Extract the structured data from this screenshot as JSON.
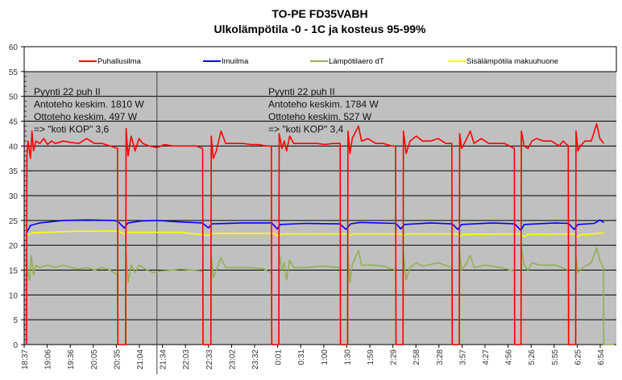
{
  "chart_data": {
    "type": "line",
    "title": "TO-PE FD35VABH",
    "subtitle": "Ulkolämpötila -0 - 1C ja kosteus 95-99%",
    "xlabel": "",
    "ylabel": "",
    "ylim": [
      0,
      60
    ],
    "yticks": [
      0,
      5,
      10,
      15,
      20,
      25,
      30,
      35,
      40,
      45,
      50,
      55,
      60
    ],
    "x_unit": "minutes after 18:37",
    "xlim": [
      0,
      755
    ],
    "xtick_labels": [
      "18:37",
      "19:06",
      "19:36",
      "20:05",
      "20:35",
      "21:04",
      "21:34",
      "22:03",
      "22:33",
      "23:02",
      "23:32",
      "0:01",
      "0:31",
      "1:00",
      "1:30",
      "1:59",
      "2:29",
      "2:58",
      "3:28",
      "3:57",
      "4:27",
      "4:56",
      "5:26",
      "5:55",
      "6:25",
      "6:54"
    ],
    "grid": true,
    "legend_position": "top",
    "colors": {
      "background": "#c0c0c0",
      "legend_bg": "#ffffff",
      "grid": "#000000"
    },
    "annotations": [
      {
        "lines": [
          "Pyynti 22 puh II",
          "Antoteho keskim. 1810 W",
          "Ottoteho keskim. 497 W",
          "=> \"koti KOP\" 3,6"
        ]
      },
      {
        "lines": [
          "Pyynti 22 puh II",
          "Antoteho keskim. 1784 W",
          "Ottoteho keskim. 527 W",
          "=> \"koti KOP\" 3,4"
        ]
      }
    ],
    "divider_minute": 170,
    "series": [
      {
        "name": "Puhallusilma",
        "color": "#ff0000",
        "points": [
          [
            3,
            0
          ],
          [
            3.5,
            38
          ],
          [
            5,
            41
          ],
          [
            8,
            37.5
          ],
          [
            10,
            43
          ],
          [
            12,
            39
          ],
          [
            15,
            41
          ],
          [
            20,
            40.5
          ],
          [
            25,
            41.5
          ],
          [
            30,
            40.3
          ],
          [
            35,
            41
          ],
          [
            40,
            40.5
          ],
          [
            50,
            41
          ],
          [
            60,
            40.7
          ],
          [
            70,
            40.5
          ],
          [
            80,
            41.5
          ],
          [
            90,
            40.5
          ],
          [
            100,
            40.5
          ],
          [
            110,
            40
          ],
          [
            119.5,
            39.5
          ],
          [
            120,
            0
          ],
          [
            130,
            0
          ],
          [
            130.5,
            43.5
          ],
          [
            133,
            38
          ],
          [
            137,
            42
          ],
          [
            142,
            39
          ],
          [
            147,
            41.5
          ],
          [
            152,
            40.5
          ],
          [
            160,
            40
          ],
          [
            170,
            39.7
          ],
          [
            180,
            40.3
          ],
          [
            190,
            40
          ],
          [
            200,
            40
          ],
          [
            210,
            40
          ],
          [
            220,
            40
          ],
          [
            228.5,
            39.5
          ],
          [
            229,
            0
          ],
          [
            239,
            0
          ],
          [
            239.5,
            42
          ],
          [
            242,
            37.5
          ],
          [
            246,
            39
          ],
          [
            252,
            43
          ],
          [
            258,
            40.5
          ],
          [
            270,
            40.5
          ],
          [
            280,
            40.5
          ],
          [
            290,
            40.3
          ],
          [
            300,
            40.3
          ],
          [
            310,
            40
          ],
          [
            316.5,
            40
          ],
          [
            317,
            0
          ],
          [
            326,
            0
          ],
          [
            326.5,
            42.5
          ],
          [
            330,
            39.5
          ],
          [
            333,
            41
          ],
          [
            336,
            39
          ],
          [
            340,
            42
          ],
          [
            345,
            40.5
          ],
          [
            355,
            40.5
          ],
          [
            365,
            40.5
          ],
          [
            375,
            40.5
          ],
          [
            385,
            40.3
          ],
          [
            395,
            40.5
          ],
          [
            404.5,
            40.5
          ],
          [
            405,
            0
          ],
          [
            414,
            0
          ],
          [
            414.5,
            43
          ],
          [
            417,
            38.5
          ],
          [
            420,
            41.5
          ],
          [
            428,
            44
          ],
          [
            432,
            41
          ],
          [
            440,
            41.5
          ],
          [
            450,
            40.5
          ],
          [
            460,
            40.5
          ],
          [
            470,
            40
          ],
          [
            475.5,
            40
          ],
          [
            476,
            0
          ],
          [
            485,
            0
          ],
          [
            485.5,
            43
          ],
          [
            489,
            38.5
          ],
          [
            494,
            41
          ],
          [
            502,
            42
          ],
          [
            510,
            41
          ],
          [
            520,
            41
          ],
          [
            530,
            41.5
          ],
          [
            540,
            40.5
          ],
          [
            547.5,
            40.5
          ],
          [
            548,
            0
          ],
          [
            557,
            0
          ],
          [
            557.5,
            42.5
          ],
          [
            560,
            39.5
          ],
          [
            565,
            41
          ],
          [
            571,
            43
          ],
          [
            576,
            40.5
          ],
          [
            585,
            41.5
          ],
          [
            595,
            40.5
          ],
          [
            605,
            40.5
          ],
          [
            615,
            40.5
          ],
          [
            627.5,
            39.5
          ],
          [
            628,
            0
          ],
          [
            636,
            0
          ],
          [
            636.5,
            43
          ],
          [
            640,
            40
          ],
          [
            645,
            39.5
          ],
          [
            650,
            41
          ],
          [
            656,
            41.5
          ],
          [
            665,
            41
          ],
          [
            675,
            41
          ],
          [
            685,
            40
          ],
          [
            690,
            41
          ],
          [
            696.5,
            40
          ],
          [
            697,
            0
          ],
          [
            706,
            0
          ],
          [
            706.5,
            43
          ],
          [
            709,
            39
          ],
          [
            712,
            40
          ],
          [
            718,
            41
          ],
          [
            726,
            41
          ],
          [
            733,
            44.5
          ],
          [
            737,
            41.5
          ],
          [
            742,
            40.5
          ]
        ]
      },
      {
        "name": "Imuilma",
        "color": "#0000ff",
        "points": [
          [
            3,
            22.5
          ],
          [
            8,
            24
          ],
          [
            20,
            24.5
          ],
          [
            50,
            25
          ],
          [
            80,
            25.1
          ],
          [
            115,
            25
          ],
          [
            120,
            24.8
          ],
          [
            128,
            23.5
          ],
          [
            133,
            24.5
          ],
          [
            150,
            24.9
          ],
          [
            170,
            25
          ],
          [
            200,
            24.7
          ],
          [
            228,
            24.5
          ],
          [
            236,
            23.5
          ],
          [
            240,
            24.3
          ],
          [
            280,
            24.5
          ],
          [
            317,
            24.5
          ],
          [
            324,
            23.3
          ],
          [
            328,
            24.2
          ],
          [
            360,
            24.4
          ],
          [
            404,
            24.3
          ],
          [
            412,
            23.2
          ],
          [
            418,
            24.3
          ],
          [
            430,
            24.6
          ],
          [
            476,
            24.4
          ],
          [
            482,
            23.3
          ],
          [
            487,
            24.2
          ],
          [
            520,
            24.5
          ],
          [
            548,
            24.3
          ],
          [
            555,
            23.2
          ],
          [
            560,
            24.2
          ],
          [
            600,
            24.5
          ],
          [
            628,
            24.3
          ],
          [
            636,
            23
          ],
          [
            640,
            24.2
          ],
          [
            680,
            24.5
          ],
          [
            697,
            24.4
          ],
          [
            704,
            23.2
          ],
          [
            709,
            24.2
          ],
          [
            730,
            24.4
          ],
          [
            737,
            25.1
          ],
          [
            742,
            24.6
          ]
        ]
      },
      {
        "name": "Lämpötilaero dT",
        "color": "#92b050",
        "points": [
          [
            3,
            0
          ],
          [
            3.5,
            17
          ],
          [
            5,
            14
          ],
          [
            7,
            13
          ],
          [
            9,
            18
          ],
          [
            12,
            14
          ],
          [
            15,
            16
          ],
          [
            20,
            15.5
          ],
          [
            30,
            16
          ],
          [
            40,
            15.5
          ],
          [
            50,
            16
          ],
          [
            60,
            15.5
          ],
          [
            70,
            15.2
          ],
          [
            80,
            15.5
          ],
          [
            90,
            15
          ],
          [
            100,
            15.5
          ],
          [
            110,
            15
          ],
          [
            119.5,
            14
          ],
          [
            120,
            0
          ],
          [
            130,
            0
          ],
          [
            130.5,
            19
          ],
          [
            133,
            12.5
          ],
          [
            137,
            16
          ],
          [
            142,
            14.5
          ],
          [
            147,
            16
          ],
          [
            155,
            15.2
          ],
          [
            165,
            14.5
          ],
          [
            175,
            14.8
          ],
          [
            190,
            15
          ],
          [
            200,
            15.2
          ],
          [
            215,
            15
          ],
          [
            228.5,
            14.8
          ],
          [
            229,
            0
          ],
          [
            239,
            0
          ],
          [
            239.5,
            18
          ],
          [
            242,
            13.5
          ],
          [
            246,
            15
          ],
          [
            252,
            17.5
          ],
          [
            258,
            15.5
          ],
          [
            270,
            15.5
          ],
          [
            290,
            15.5
          ],
          [
            305,
            15.3
          ],
          [
            316.5,
            14.5
          ],
          [
            317,
            0
          ],
          [
            326,
            0
          ],
          [
            326.5,
            18.5
          ],
          [
            330,
            15
          ],
          [
            333,
            16.5
          ],
          [
            336,
            13
          ],
          [
            340,
            17
          ],
          [
            345,
            15.5
          ],
          [
            360,
            15.5
          ],
          [
            380,
            15.8
          ],
          [
            404.5,
            15.5
          ],
          [
            405,
            0
          ],
          [
            414,
            0
          ],
          [
            414.5,
            18.5
          ],
          [
            417,
            12.5
          ],
          [
            420,
            16
          ],
          [
            428,
            19
          ],
          [
            432,
            16
          ],
          [
            445,
            16
          ],
          [
            460,
            15.8
          ],
          [
            475.5,
            15
          ],
          [
            476,
            0
          ],
          [
            485,
            0
          ],
          [
            485.5,
            18.5
          ],
          [
            489,
            13
          ],
          [
            494,
            15.5
          ],
          [
            502,
            16.5
          ],
          [
            510,
            15.8
          ],
          [
            530,
            16.5
          ],
          [
            547.5,
            15.5
          ],
          [
            548,
            0
          ],
          [
            557,
            0
          ],
          [
            557.5,
            18.5
          ],
          [
            560,
            15
          ],
          [
            565,
            16
          ],
          [
            571,
            18
          ],
          [
            576,
            15.5
          ],
          [
            590,
            16
          ],
          [
            610,
            15.5
          ],
          [
            627.5,
            14.8
          ],
          [
            628,
            0
          ],
          [
            636,
            0
          ],
          [
            636.5,
            19.5
          ],
          [
            640,
            16
          ],
          [
            645,
            15
          ],
          [
            650,
            16.5
          ],
          [
            660,
            16
          ],
          [
            680,
            16
          ],
          [
            696.5,
            15
          ],
          [
            697,
            0
          ],
          [
            706,
            0
          ],
          [
            706.5,
            18
          ],
          [
            709,
            14.5
          ],
          [
            715,
            15.5
          ],
          [
            726,
            16.5
          ],
          [
            733,
            19.5
          ],
          [
            737,
            17
          ],
          [
            741.5,
            15.5
          ],
          [
            742,
            0
          ],
          [
            755,
            0
          ]
        ]
      },
      {
        "name": "Sisälämpötila makuuhuone",
        "color": "#ffff00",
        "points": [
          [
            3,
            22
          ],
          [
            10,
            22.5
          ],
          [
            60,
            22.8
          ],
          [
            120,
            22.9
          ],
          [
            128,
            22.3
          ],
          [
            135,
            22.6
          ],
          [
            200,
            22.6
          ],
          [
            236,
            22.0
          ],
          [
            242,
            22.4
          ],
          [
            320,
            22.4
          ],
          [
            324,
            21.9
          ],
          [
            330,
            22.3
          ],
          [
            412,
            22.3
          ],
          [
            416,
            21.9
          ],
          [
            420,
            22.3
          ],
          [
            482,
            22.3
          ],
          [
            486,
            21.9
          ],
          [
            490,
            22.3
          ],
          [
            555,
            22.3
          ],
          [
            558,
            21.8
          ],
          [
            562,
            22.2
          ],
          [
            636,
            22.3
          ],
          [
            640,
            21.7
          ],
          [
            645,
            22.2
          ],
          [
            704,
            22.3
          ],
          [
            708,
            21.7
          ],
          [
            712,
            22.1
          ],
          [
            742,
            22.5
          ]
        ]
      }
    ]
  }
}
